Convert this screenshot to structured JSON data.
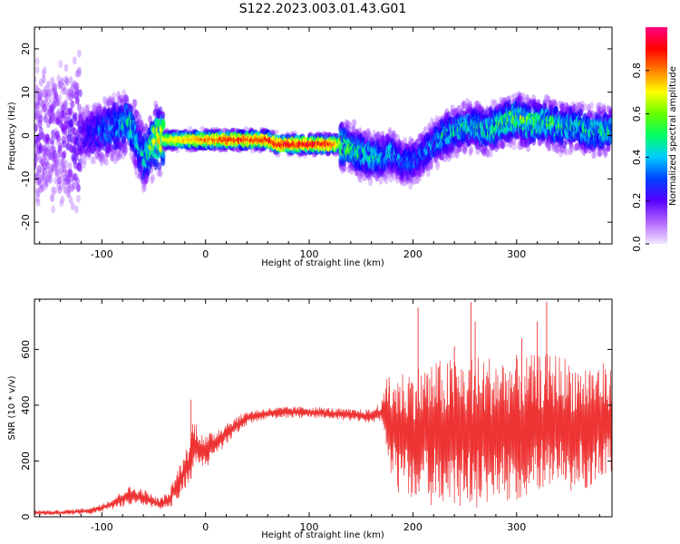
{
  "figure": {
    "title": "S122.2023.003.01.43.G01"
  },
  "chart_data": [
    {
      "type": "heatmap",
      "xlabel": "Height of straight line (km)",
      "ylabel": "Frequency (Hz)",
      "xlim": [
        -165,
        392
      ],
      "ylim": [
        -25,
        25
      ],
      "xticks": [
        -100,
        0,
        100,
        200,
        300
      ],
      "yticks": [
        -20,
        -10,
        0,
        10,
        20
      ],
      "grid": false,
      "colorbar": {
        "label": "Normalized spectral amplitude",
        "range": [
          0,
          1
        ],
        "ticks": [
          "0.0",
          "0.2",
          "0.4",
          "0.6",
          "0.8"
        ],
        "colormap": [
          "#e6ccff",
          "#7a00ff",
          "#0000ff",
          "#00ccff",
          "#00ff44",
          "#c8ff00",
          "#ffff00",
          "#ff8000",
          "#ff0000",
          "#ff0080"
        ]
      },
      "ridge": {
        "x": [
          -160,
          -140,
          -120,
          -100,
          -85,
          -75,
          -70,
          -65,
          -60,
          -55,
          -50,
          -40,
          -20,
          0,
          20,
          40,
          60,
          70,
          90,
          110,
          125,
          130,
          140,
          150,
          160,
          170,
          180,
          190,
          200,
          210,
          220,
          230,
          240,
          250,
          260,
          270,
          280,
          290,
          300,
          310,
          320,
          330,
          340,
          350,
          360,
          370,
          380,
          390
        ],
        "y": [
          0,
          0,
          0,
          1,
          2,
          3,
          2,
          -2,
          -5,
          -4,
          -1,
          -1,
          -1,
          -1,
          -1,
          -1,
          -1,
          -2,
          -2,
          -2,
          -2,
          -2,
          -3,
          -4,
          -5,
          -5,
          -4,
          -6,
          -6,
          -4,
          -2,
          0,
          1,
          2,
          2,
          1,
          2,
          3,
          4,
          3,
          3,
          3,
          2,
          2,
          2,
          1,
          1,
          1
        ],
        "peak_amplitude": [
          0.1,
          0.1,
          0.15,
          0.25,
          0.3,
          0.35,
          0.35,
          0.3,
          0.35,
          0.35,
          0.55,
          0.6,
          0.7,
          0.8,
          0.85,
          0.85,
          0.85,
          0.9,
          0.9,
          0.9,
          0.85,
          0.5,
          0.4,
          0.35,
          0.35,
          0.3,
          0.3,
          0.25,
          0.25,
          0.25,
          0.3,
          0.35,
          0.35,
          0.35,
          0.35,
          0.35,
          0.4,
          0.4,
          0.45,
          0.45,
          0.4,
          0.4,
          0.4,
          0.35,
          0.35,
          0.35,
          0.35,
          0.35
        ]
      }
    },
    {
      "type": "line",
      "xlabel": "Height of straight line (km)",
      "ylabel": "SNR (10 * v/v)",
      "xlim": [
        -165,
        392
      ],
      "ylim": [
        0,
        780
      ],
      "xticks": [
        -100,
        0,
        100,
        200,
        300
      ],
      "yticks": [
        0,
        200,
        400,
        600
      ],
      "grid": false,
      "color": "#ee3333",
      "envelope": {
        "x": [
          -165,
          -140,
          -110,
          -90,
          -75,
          -60,
          -45,
          -35,
          -25,
          -15,
          -12,
          0,
          20,
          40,
          60,
          80,
          100,
          120,
          140,
          160,
          170,
          175,
          185,
          200,
          220,
          240,
          260,
          280,
          300,
          320,
          340,
          360,
          380,
          392
        ],
        "mean": [
          15,
          15,
          22,
          45,
          75,
          70,
          45,
          60,
          130,
          200,
          260,
          230,
          300,
          355,
          370,
          375,
          375,
          370,
          365,
          360,
          375,
          350,
          300,
          300,
          300,
          300,
          300,
          310,
          320,
          330,
          340,
          320,
          340,
          330
        ],
        "spread": [
          8,
          8,
          12,
          20,
          35,
          30,
          20,
          30,
          60,
          80,
          100,
          60,
          40,
          25,
          20,
          20,
          20,
          20,
          20,
          25,
          40,
          150,
          220,
          240,
          260,
          270,
          280,
          270,
          260,
          250,
          250,
          230,
          220,
          200
        ]
      },
      "peaks": {
        "x": [
          -14,
          177,
          205,
          240,
          256,
          260,
          305,
          320,
          329
        ],
        "y": [
          420,
          500,
          750,
          610,
          770,
          700,
          640,
          700,
          770
        ]
      }
    }
  ]
}
